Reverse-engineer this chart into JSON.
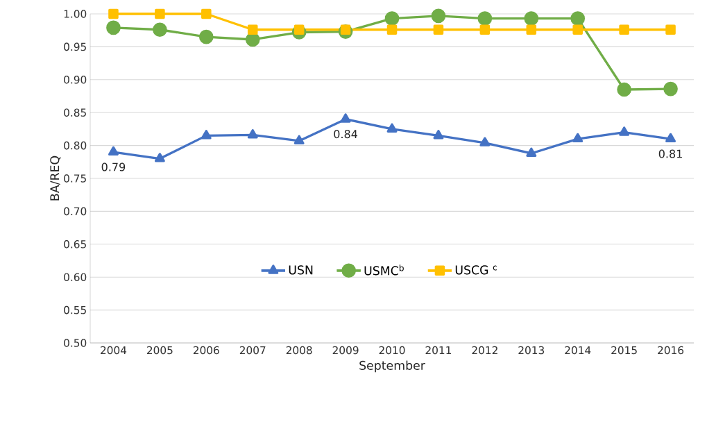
{
  "chart_data": {
    "type": "line",
    "xlabel": "September",
    "ylabel": "BA/REQ",
    "categories": [
      "2004",
      "2005",
      "2006",
      "2007",
      "2008",
      "2009",
      "2010",
      "2011",
      "2012",
      "2013",
      "2014",
      "2015",
      "2016"
    ],
    "series": [
      {
        "name": "USN",
        "color": "#4472c4",
        "marker": "triangle",
        "values": [
          0.79,
          0.78,
          0.815,
          0.816,
          0.807,
          0.84,
          0.825,
          0.815,
          0.804,
          0.788,
          0.81,
          0.82,
          0.81
        ],
        "value_labels": [
          "0.79",
          null,
          null,
          null,
          null,
          "0.84",
          null,
          null,
          null,
          null,
          null,
          null,
          "0.81"
        ]
      },
      {
        "name": "USMC$^{b}$",
        "color": "#70ad47",
        "marker": "circle",
        "values": [
          0.979,
          0.976,
          0.965,
          0.961,
          0.972,
          0.973,
          0.993,
          0.997,
          0.993,
          0.993,
          0.993,
          0.885,
          0.886
        ]
      },
      {
        "name": "USCG $^{c}$",
        "color": "#ffc000",
        "marker": "square",
        "values": [
          1.0,
          1.0,
          1.0,
          0.976,
          0.976,
          0.976,
          0.976,
          0.976,
          0.976,
          0.976,
          0.976,
          0.976,
          0.976
        ]
      }
    ],
    "ylim": [
      0.5,
      1.0
    ],
    "yticks": [
      {
        "value": 0.5,
        "label": "0.50"
      },
      {
        "value": 0.55,
        "label": "0.55"
      },
      {
        "value": 0.6,
        "label": "0.60"
      },
      {
        "value": 0.65,
        "label": "0.65"
      },
      {
        "value": 0.7,
        "label": "0.70"
      },
      {
        "value": 0.75,
        "label": "0.75"
      },
      {
        "value": 0.8,
        "label": "0.80"
      },
      {
        "value": 0.85,
        "label": "0.85"
      },
      {
        "value": 0.9,
        "label": "0.90"
      },
      {
        "value": 0.95,
        "label": "0.95"
      },
      {
        "value": 1.0,
        "label": "1.00"
      }
    ],
    "grid": "y",
    "legend": "bottom",
    "line_style": "solid"
  }
}
